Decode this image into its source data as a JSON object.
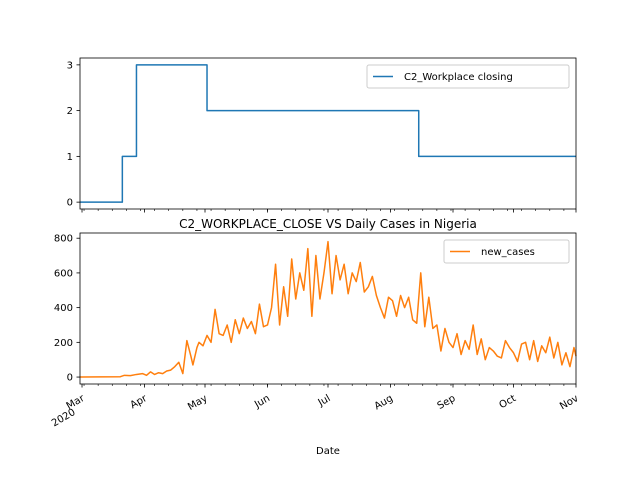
{
  "chart_data": [
    {
      "type": "line",
      "title": "",
      "xlabel": "",
      "ylabel": "",
      "xlim": [
        "2020-02-29",
        "2020-11-01"
      ],
      "ylim": [
        -0.15,
        3.15
      ],
      "yticks": [
        0,
        1,
        2,
        3
      ],
      "grid": false,
      "legend": "top-right",
      "series": [
        {
          "name": "C2_Workplace closing",
          "color": "#1f77b4",
          "x": [
            "2020-02-29",
            "2020-03-21",
            "2020-03-21",
            "2020-03-28",
            "2020-03-28",
            "2020-05-02",
            "2020-05-02",
            "2020-08-15",
            "2020-08-15",
            "2020-11-01"
          ],
          "y": [
            0,
            0,
            1,
            1,
            3,
            3,
            2,
            2,
            1,
            1
          ]
        }
      ]
    },
    {
      "type": "line",
      "title": "C2_WORKPLACE_CLOSE VS Daily Cases in Nigeria",
      "xlabel": "Date",
      "ylabel": "",
      "xlim": [
        "2020-02-29",
        "2020-11-01"
      ],
      "ylim": [
        -40,
        830
      ],
      "yticks": [
        0,
        200,
        400,
        600,
        800
      ],
      "xticks": [
        {
          "date": "2020-03-01",
          "label": "Mar",
          "sublabel": "2020"
        },
        {
          "date": "2020-04-01",
          "label": "Apr",
          "sublabel": ""
        },
        {
          "date": "2020-05-01",
          "label": "May",
          "sublabel": ""
        },
        {
          "date": "2020-06-01",
          "label": "Jun",
          "sublabel": ""
        },
        {
          "date": "2020-07-01",
          "label": "Jul",
          "sublabel": ""
        },
        {
          "date": "2020-08-01",
          "label": "Aug",
          "sublabel": ""
        },
        {
          "date": "2020-09-01",
          "label": "Sep",
          "sublabel": ""
        },
        {
          "date": "2020-10-01",
          "label": "Oct",
          "sublabel": ""
        },
        {
          "date": "2020-11-01",
          "label": "Nov",
          "sublabel": ""
        }
      ],
      "grid": false,
      "legend": "top-right",
      "series": [
        {
          "name": "new_cases",
          "color": "#ff7f0e",
          "x": [
            "2020-02-29",
            "2020-03-01",
            "2020-03-10",
            "2020-03-20",
            "2020-03-22",
            "2020-03-25",
            "2020-03-28",
            "2020-03-31",
            "2020-04-02",
            "2020-04-04",
            "2020-04-06",
            "2020-04-08",
            "2020-04-10",
            "2020-04-12",
            "2020-04-14",
            "2020-04-16",
            "2020-04-18",
            "2020-04-20",
            "2020-04-22",
            "2020-04-24",
            "2020-04-25",
            "2020-04-27",
            "2020-04-28",
            "2020-04-30",
            "2020-05-02",
            "2020-05-04",
            "2020-05-06",
            "2020-05-08",
            "2020-05-10",
            "2020-05-12",
            "2020-05-14",
            "2020-05-16",
            "2020-05-18",
            "2020-05-20",
            "2020-05-22",
            "2020-05-24",
            "2020-05-26",
            "2020-05-28",
            "2020-05-30",
            "2020-06-01",
            "2020-06-03",
            "2020-06-05",
            "2020-06-07",
            "2020-06-09",
            "2020-06-11",
            "2020-06-13",
            "2020-06-15",
            "2020-06-17",
            "2020-06-19",
            "2020-06-21",
            "2020-06-23",
            "2020-06-25",
            "2020-06-27",
            "2020-06-29",
            "2020-07-01",
            "2020-07-03",
            "2020-07-05",
            "2020-07-07",
            "2020-07-09",
            "2020-07-11",
            "2020-07-13",
            "2020-07-15",
            "2020-07-17",
            "2020-07-19",
            "2020-07-21",
            "2020-07-23",
            "2020-07-25",
            "2020-07-27",
            "2020-07-29",
            "2020-07-31",
            "2020-08-02",
            "2020-08-04",
            "2020-08-06",
            "2020-08-08",
            "2020-08-10",
            "2020-08-12",
            "2020-08-14",
            "2020-08-16",
            "2020-08-18",
            "2020-08-20",
            "2020-08-22",
            "2020-08-24",
            "2020-08-26",
            "2020-08-28",
            "2020-08-30",
            "2020-09-01",
            "2020-09-03",
            "2020-09-05",
            "2020-09-07",
            "2020-09-09",
            "2020-09-11",
            "2020-09-13",
            "2020-09-15",
            "2020-09-17",
            "2020-09-19",
            "2020-09-21",
            "2020-09-23",
            "2020-09-25",
            "2020-09-27",
            "2020-09-29",
            "2020-10-01",
            "2020-10-03",
            "2020-10-05",
            "2020-10-07",
            "2020-10-09",
            "2020-10-11",
            "2020-10-13",
            "2020-10-15",
            "2020-10-17",
            "2020-10-19",
            "2020-10-21",
            "2020-10-23",
            "2020-10-25",
            "2020-10-27",
            "2020-10-29",
            "2020-10-31",
            "2020-11-01"
          ],
          "y": [
            0,
            0,
            1,
            2,
            10,
            8,
            15,
            20,
            10,
            30,
            15,
            25,
            20,
            35,
            40,
            60,
            85,
            20,
            210,
            120,
            70,
            170,
            200,
            180,
            240,
            200,
            390,
            250,
            240,
            300,
            200,
            330,
            250,
            340,
            280,
            320,
            250,
            420,
            290,
            300,
            400,
            650,
            300,
            520,
            350,
            680,
            450,
            600,
            500,
            740,
            350,
            700,
            450,
            600,
            780,
            480,
            700,
            560,
            650,
            480,
            600,
            550,
            660,
            490,
            520,
            580,
            470,
            400,
            340,
            460,
            440,
            350,
            470,
            400,
            460,
            330,
            310,
            600,
            290,
            460,
            280,
            300,
            150,
            280,
            200,
            170,
            250,
            130,
            210,
            160,
            300,
            130,
            220,
            100,
            170,
            150,
            120,
            110,
            210,
            170,
            140,
            90,
            190,
            200,
            100,
            210,
            90,
            180,
            140,
            230,
            110,
            200,
            70,
            140,
            60,
            170,
            120
          ]
        }
      ]
    }
  ]
}
